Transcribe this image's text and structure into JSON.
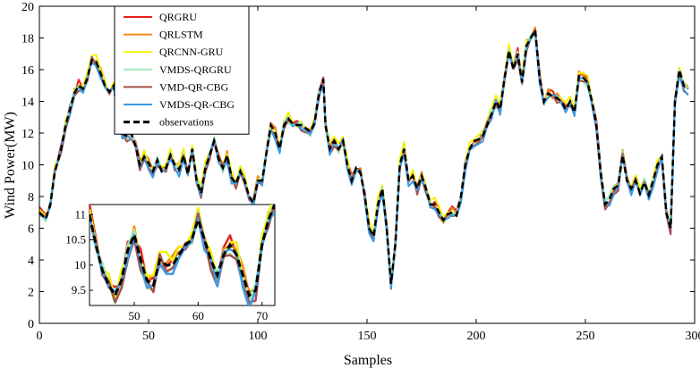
{
  "chart_data": {
    "type": "line",
    "xlabel": "Samples",
    "ylabel": "Wind Power(MW)",
    "xlim": [
      0,
      300
    ],
    "ylim": [
      0,
      20
    ],
    "x_ticks": [
      0,
      50,
      100,
      150,
      200,
      250,
      300
    ],
    "y_ticks": [
      0,
      2,
      4,
      6,
      8,
      10,
      12,
      14,
      16,
      18,
      20
    ],
    "grid": false,
    "legend_position": "top-left",
    "observations": [
      [
        0,
        7.0
      ],
      [
        3,
        6.6
      ],
      [
        5,
        7.5
      ],
      [
        7,
        9.5
      ],
      [
        10,
        11.0
      ],
      [
        12,
        12.5
      ],
      [
        14,
        13.5
      ],
      [
        16,
        14.5
      ],
      [
        18,
        15.0
      ],
      [
        20,
        14.8
      ],
      [
        22,
        15.5
      ],
      [
        24,
        16.6
      ],
      [
        26,
        16.5
      ],
      [
        28,
        15.8
      ],
      [
        30,
        15.0
      ],
      [
        32,
        14.6
      ],
      [
        34,
        15.0
      ],
      [
        36,
        13.0
      ],
      [
        38,
        12.0
      ],
      [
        40,
        11.8
      ],
      [
        42,
        12.0
      ],
      [
        44,
        11.2
      ],
      [
        46,
        10.0
      ],
      [
        48,
        10.5
      ],
      [
        50,
        10.1
      ],
      [
        52,
        9.6
      ],
      [
        54,
        10.3
      ],
      [
        56,
        9.6
      ],
      [
        58,
        9.8
      ],
      [
        60,
        10.6
      ],
      [
        62,
        10.0
      ],
      [
        64,
        9.7
      ],
      [
        66,
        10.6
      ],
      [
        68,
        9.4
      ],
      [
        70,
        11.0
      ],
      [
        72,
        9.0
      ],
      [
        74,
        8.2
      ],
      [
        76,
        9.8
      ],
      [
        78,
        10.6
      ],
      [
        80,
        11.5
      ],
      [
        82,
        10.4
      ],
      [
        84,
        9.8
      ],
      [
        86,
        10.6
      ],
      [
        88,
        9.2
      ],
      [
        90,
        8.8
      ],
      [
        92,
        9.6
      ],
      [
        94,
        9.0
      ],
      [
        96,
        8.0
      ],
      [
        98,
        7.6
      ],
      [
        100,
        9.0
      ],
      [
        102,
        9.0
      ],
      [
        104,
        10.8
      ],
      [
        106,
        12.5
      ],
      [
        108,
        12.0
      ],
      [
        110,
        11.0
      ],
      [
        112,
        12.5
      ],
      [
        114,
        12.9
      ],
      [
        116,
        12.6
      ],
      [
        118,
        12.5
      ],
      [
        120,
        12.5
      ],
      [
        122,
        12.3
      ],
      [
        124,
        12.1
      ],
      [
        126,
        12.6
      ],
      [
        128,
        14.5
      ],
      [
        130,
        15.4
      ],
      [
        131,
        12.5
      ],
      [
        133,
        11.0
      ],
      [
        135,
        11.5
      ],
      [
        137,
        11.0
      ],
      [
        139,
        11.5
      ],
      [
        141,
        10.0
      ],
      [
        143,
        9.0
      ],
      [
        145,
        9.8
      ],
      [
        147,
        9.5
      ],
      [
        149,
        8.0
      ],
      [
        151,
        6.0
      ],
      [
        153,
        5.5
      ],
      [
        155,
        7.5
      ],
      [
        157,
        8.5
      ],
      [
        159,
        6.0
      ],
      [
        161,
        2.5
      ],
      [
        163,
        5.0
      ],
      [
        165,
        10.0
      ],
      [
        167,
        11.0
      ],
      [
        169,
        9.0
      ],
      [
        171,
        9.3
      ],
      [
        173,
        8.5
      ],
      [
        175,
        9.3
      ],
      [
        177,
        8.5
      ],
      [
        179,
        7.5
      ],
      [
        181,
        7.5
      ],
      [
        183,
        7.0
      ],
      [
        185,
        6.5
      ],
      [
        187,
        6.9
      ],
      [
        189,
        7.0
      ],
      [
        191,
        6.8
      ],
      [
        193,
        8.0
      ],
      [
        195,
        10.0
      ],
      [
        197,
        11.0
      ],
      [
        199,
        11.5
      ],
      [
        201,
        11.6
      ],
      [
        203,
        11.8
      ],
      [
        205,
        12.5
      ],
      [
        207,
        13.2
      ],
      [
        209,
        14.0
      ],
      [
        211,
        13.5
      ],
      [
        213,
        15.5
      ],
      [
        215,
        17.2
      ],
      [
        217,
        16.0
      ],
      [
        219,
        17.0
      ],
      [
        221,
        15.2
      ],
      [
        223,
        17.5
      ],
      [
        225,
        18.0
      ],
      [
        227,
        18.5
      ],
      [
        229,
        15.5
      ],
      [
        231,
        14.0
      ],
      [
        233,
        14.5
      ],
      [
        235,
        14.3
      ],
      [
        237,
        14.2
      ],
      [
        239,
        14.0
      ],
      [
        241,
        13.5
      ],
      [
        243,
        14.0
      ],
      [
        245,
        13.3
      ],
      [
        247,
        15.6
      ],
      [
        249,
        15.5
      ],
      [
        251,
        15.2
      ],
      [
        253,
        14.0
      ],
      [
        255,
        12.5
      ],
      [
        257,
        9.5
      ],
      [
        259,
        7.5
      ],
      [
        261,
        7.8
      ],
      [
        263,
        8.5
      ],
      [
        265,
        8.7
      ],
      [
        267,
        10.6
      ],
      [
        269,
        9.0
      ],
      [
        271,
        8.5
      ],
      [
        273,
        9.0
      ],
      [
        275,
        8.2
      ],
      [
        277,
        8.9
      ],
      [
        279,
        8.1
      ],
      [
        281,
        9.0
      ],
      [
        283,
        10.0
      ],
      [
        285,
        10.5
      ],
      [
        287,
        7.0
      ],
      [
        289,
        6.0
      ],
      [
        291,
        14.0
      ],
      [
        293,
        16.0
      ],
      [
        295,
        15.0
      ],
      [
        297,
        14.8
      ]
    ],
    "series": [
      {
        "name": "QRGRU",
        "color": "#e8211c",
        "offset": 0.15
      },
      {
        "name": "QRLSTM",
        "color": "#f28c1a",
        "offset": 0.08
      },
      {
        "name": "QRCNN-GRU",
        "color": "#f2f20a",
        "offset": 0.25
      },
      {
        "name": "VMDS-QRGRU",
        "color": "#9ee8b8",
        "offset": -0.05
      },
      {
        "name": "VMD-QR-CBG",
        "color": "#a8504a",
        "offset": -0.15
      },
      {
        "name": "VMDS-QR-CBG",
        "color": "#3a9be8",
        "offset": -0.25
      },
      {
        "name": "observations",
        "color": "#000000",
        "dashed": true
      }
    ],
    "inset": {
      "xlim": [
        43,
        72
      ],
      "ylim": [
        9.2,
        11.2
      ],
      "x_ticks": [
        50,
        60,
        70
      ],
      "y_ticks": [
        9.5,
        10,
        10.5,
        11
      ],
      "observations": [
        [
          43,
          11.0
        ],
        [
          44,
          10.4
        ],
        [
          45,
          9.9
        ],
        [
          46,
          9.6
        ],
        [
          47,
          9.4
        ],
        [
          48,
          9.7
        ],
        [
          49,
          10.3
        ],
        [
          50,
          10.6
        ],
        [
          51,
          10.1
        ],
        [
          52,
          9.7
        ],
        [
          53,
          9.6
        ],
        [
          54,
          10.1
        ],
        [
          55,
          10.0
        ],
        [
          56,
          10.0
        ],
        [
          57,
          10.2
        ],
        [
          58,
          10.4
        ],
        [
          59,
          10.5
        ],
        [
          60,
          10.9
        ],
        [
          61,
          10.5
        ],
        [
          62,
          10.1
        ],
        [
          63,
          9.8
        ],
        [
          64,
          10.2
        ],
        [
          65,
          10.4
        ],
        [
          66,
          10.2
        ],
        [
          67,
          9.8
        ],
        [
          68,
          9.4
        ],
        [
          69,
          9.5
        ],
        [
          70,
          10.4
        ],
        [
          71,
          10.9
        ],
        [
          72,
          11.2
        ]
      ]
    }
  }
}
